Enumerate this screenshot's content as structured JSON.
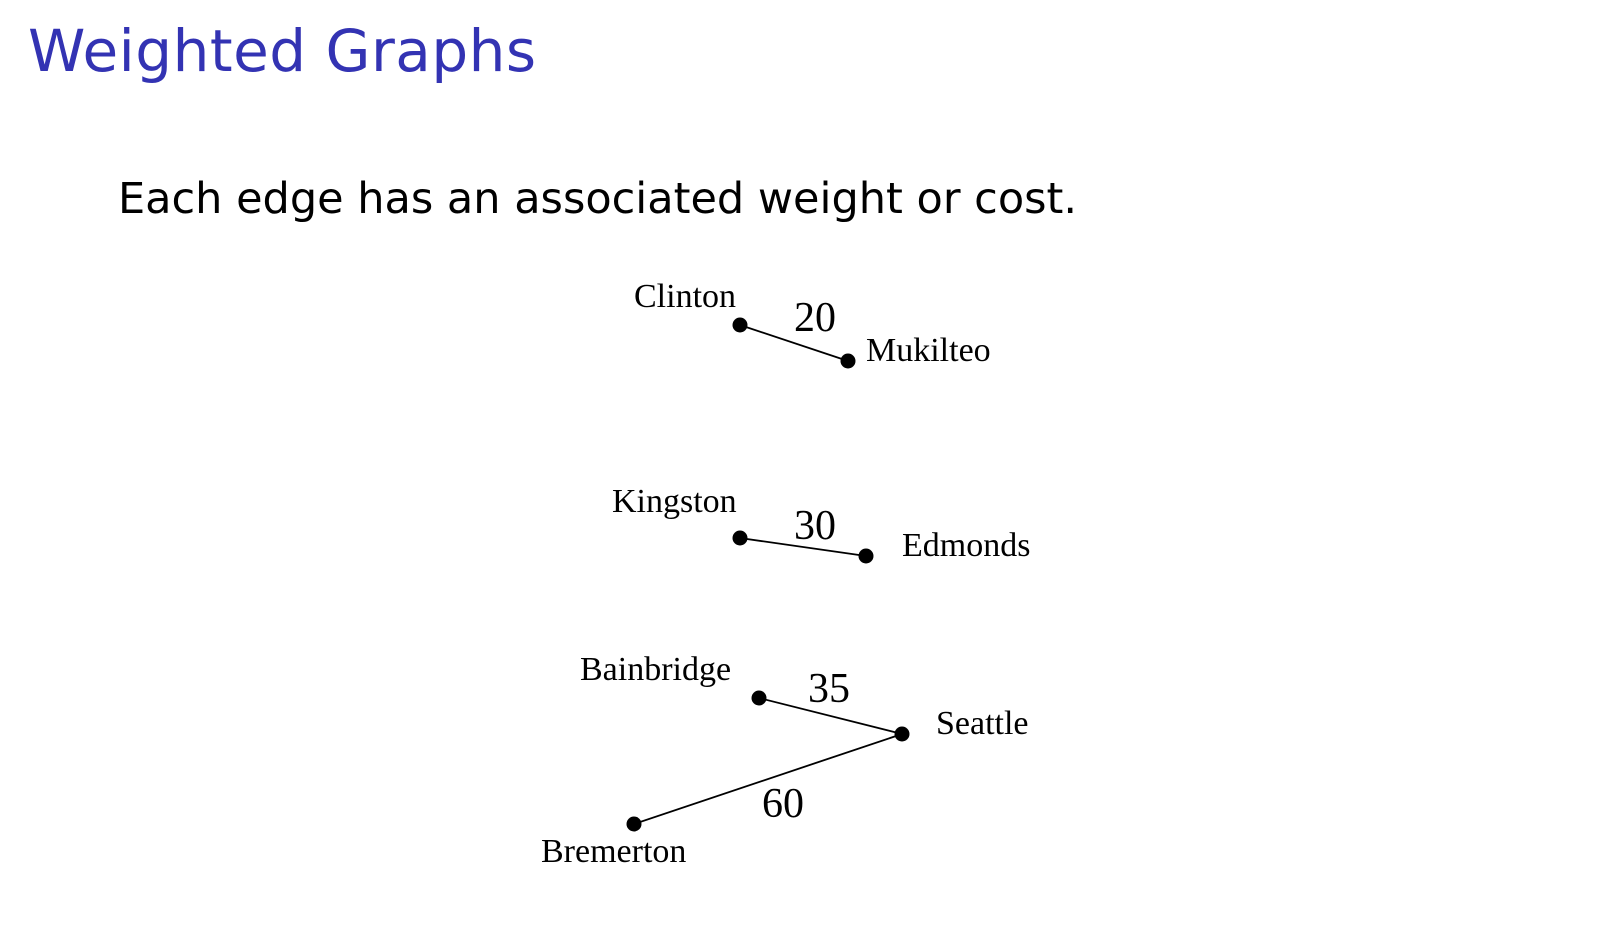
{
  "slide": {
    "title": "Weighted Graphs",
    "body": "Each edge has an associated weight or cost."
  },
  "graph": {
    "nodes": [
      {
        "id": "clinton",
        "label": "Clinton"
      },
      {
        "id": "mukilteo",
        "label": "Mukilteo"
      },
      {
        "id": "kingston",
        "label": "Kingston"
      },
      {
        "id": "edmonds",
        "label": "Edmonds"
      },
      {
        "id": "bainbridge",
        "label": "Bainbridge"
      },
      {
        "id": "seattle",
        "label": "Seattle"
      },
      {
        "id": "bremerton",
        "label": "Bremerton"
      }
    ],
    "edges": [
      {
        "from": "clinton",
        "to": "mukilteo",
        "weight": "20"
      },
      {
        "from": "kingston",
        "to": "edmonds",
        "weight": "30"
      },
      {
        "from": "bainbridge",
        "to": "seattle",
        "weight": "35"
      },
      {
        "from": "seattle",
        "to": "bremerton",
        "weight": "60"
      }
    ]
  }
}
